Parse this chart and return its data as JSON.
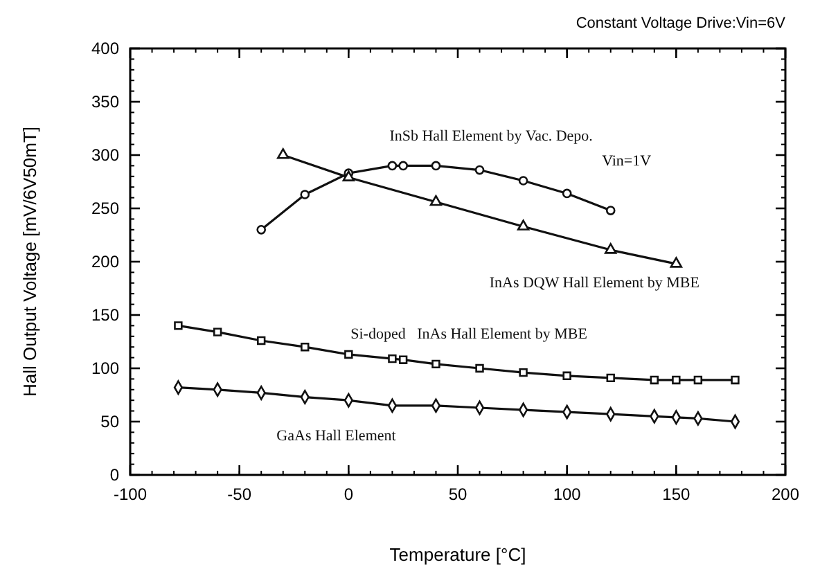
{
  "chart_data": {
    "type": "line",
    "title": "Constant Voltage Drive:Vin=6V",
    "xlabel": "Temperature [°C]",
    "ylabel": "Hall Output Voltage [mV/6V50mT]",
    "xlim": [
      -100,
      200
    ],
    "xticks": [
      -100,
      -50,
      0,
      50,
      100,
      150,
      200
    ],
    "ylim": [
      0,
      400
    ],
    "yticks": [
      0,
      50,
      100,
      150,
      200,
      250,
      300,
      350,
      400
    ],
    "grid": false,
    "annotations": [
      {
        "text": "Vin=1V",
        "x": 100,
        "y": 264
      }
    ],
    "series": [
      {
        "name": "InSb Hall Element by Vac. Depo.",
        "color": "#111111",
        "marker": "circle",
        "x": [
          -40,
          -20,
          0,
          20,
          25,
          40,
          60,
          80,
          100,
          120
        ],
        "values": [
          230,
          263,
          283,
          290,
          290,
          290,
          286,
          276,
          264,
          248
        ]
      },
      {
        "name": "InAs DQW Hall Element by MBE",
        "color": "#111111",
        "marker": "triangle",
        "x": [
          -30,
          0,
          40,
          80,
          120,
          150
        ],
        "values": [
          300,
          279,
          256,
          233,
          211,
          198
        ]
      },
      {
        "name": "Si-doped   InAs Hall Element by MBE",
        "color": "#111111",
        "marker": "square",
        "x": [
          -78,
          -60,
          -40,
          -20,
          0,
          20,
          25,
          40,
          60,
          80,
          100,
          120,
          140,
          150,
          160,
          177
        ],
        "values": [
          140,
          134,
          126,
          120,
          113,
          109,
          108,
          104,
          100,
          96,
          93,
          91,
          89,
          89,
          89,
          89
        ]
      },
      {
        "name": "GaAs Hall Element",
        "color": "#111111",
        "marker": "diamond",
        "x": [
          -78,
          -60,
          -40,
          -20,
          0,
          20,
          40,
          60,
          80,
          100,
          120,
          140,
          150,
          160,
          177
        ],
        "values": [
          82,
          80,
          77,
          73,
          70,
          65,
          65,
          63,
          61,
          59,
          57,
          55,
          54,
          53,
          50
        ]
      }
    ]
  }
}
